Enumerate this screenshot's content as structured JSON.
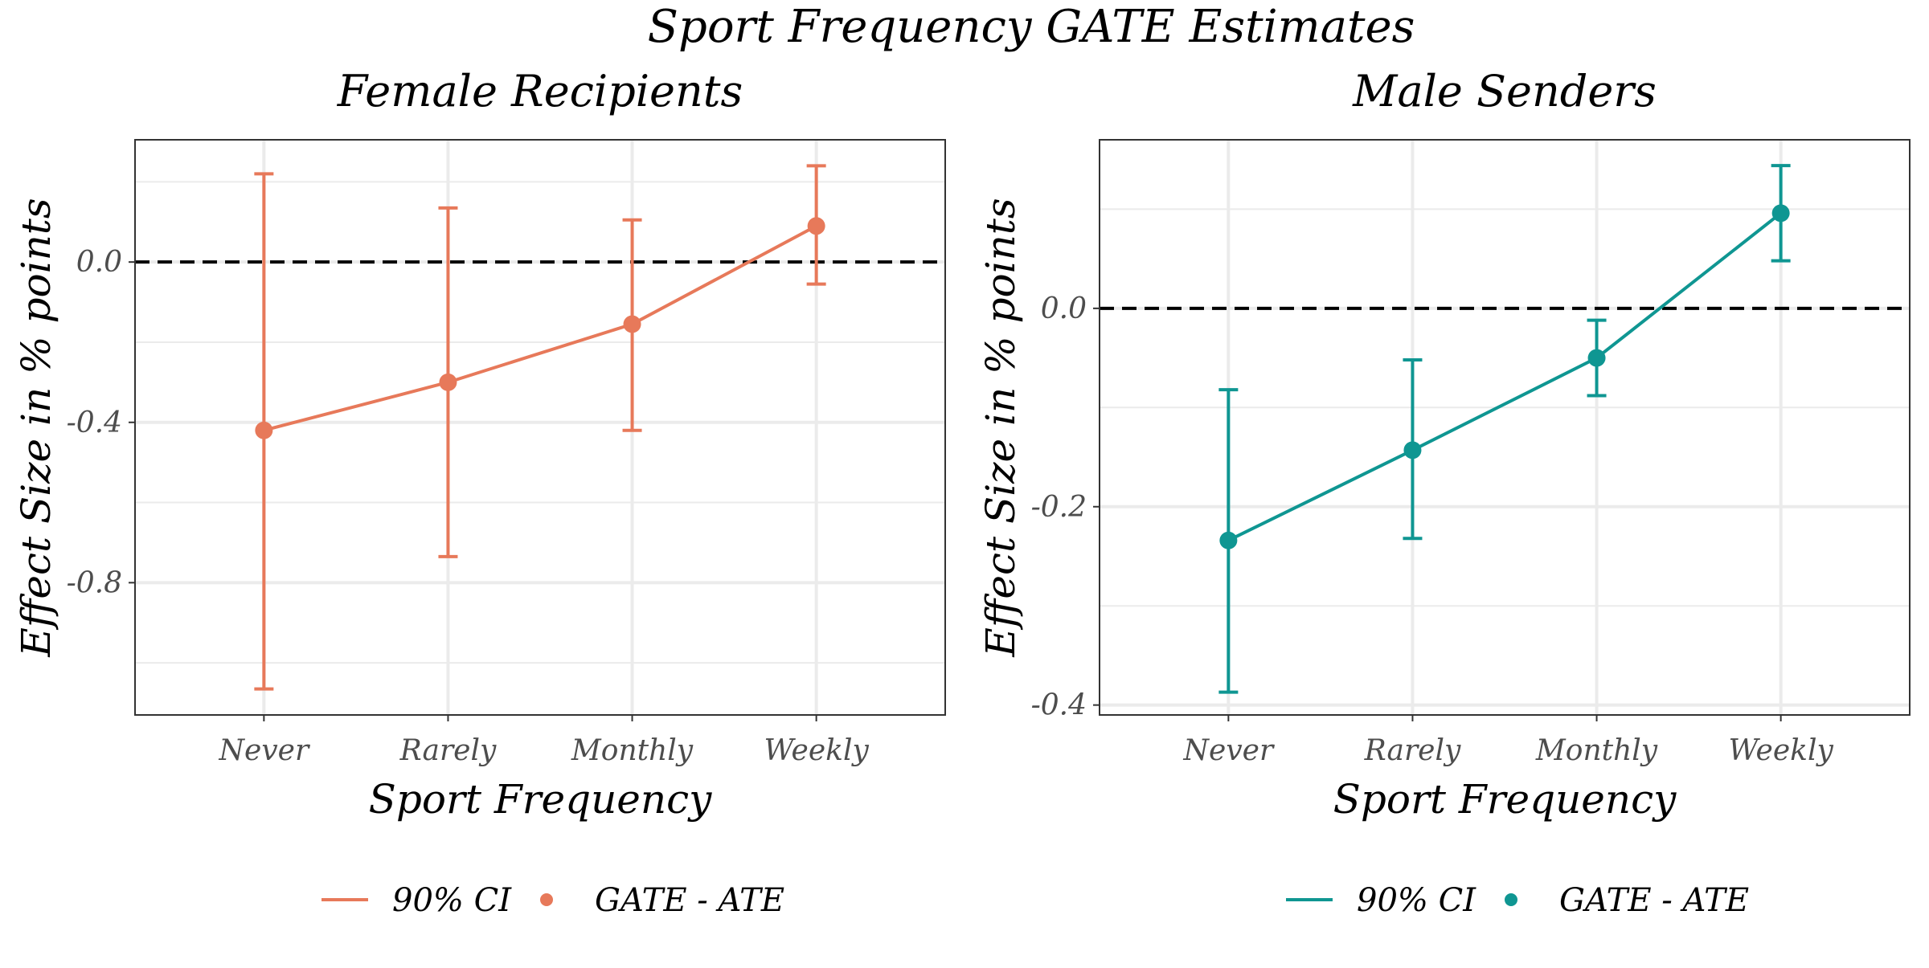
{
  "chart_data": {
    "title": "Sport Frequency GATE Estimates",
    "panels": [
      {
        "type": "line",
        "title": "Female Recipients",
        "xlabel": "Sport Frequency",
        "ylabel": "Effect Size in % points",
        "categories": [
          "Never",
          "Rarely",
          "Monthly",
          "Weekly"
        ],
        "values": [
          -0.42,
          -0.3,
          -0.155,
          0.09
        ],
        "ci_lower": [
          -1.065,
          -0.735,
          -0.42,
          -0.055
        ],
        "ci_upper": [
          0.22,
          0.135,
          0.105,
          0.24
        ],
        "ylim": [
          -1.13,
          0.305
        ],
        "yticks": [
          0.0,
          -0.4,
          -0.8
        ],
        "yticks_labels": [
          "0.0",
          "-0.4",
          "-0.8"
        ],
        "reference_line": 0.0,
        "color": "#E7795A",
        "legend": {
          "line_label": "90% CI",
          "point_label": "GATE - ATE"
        }
      },
      {
        "type": "line",
        "title": "Male Senders",
        "xlabel": "Sport Frequency",
        "ylabel": "Effect Size in % points",
        "categories": [
          "Never",
          "Rarely",
          "Monthly",
          "Weekly"
        ],
        "values": [
          -0.234,
          -0.143,
          -0.05,
          0.096
        ],
        "ci_lower": [
          -0.387,
          -0.232,
          -0.088,
          0.048
        ],
        "ci_upper": [
          -0.082,
          -0.052,
          -0.012,
          0.144
        ],
        "ylim": [
          -0.41,
          0.17
        ],
        "yticks": [
          0.0,
          -0.2,
          -0.4
        ],
        "yticks_labels": [
          "0.0",
          "-0.2",
          "-0.4"
        ],
        "reference_line": 0.0,
        "color": "#0F9692",
        "legend": {
          "line_label": "90% CI",
          "point_label": "GATE - ATE"
        }
      }
    ]
  }
}
